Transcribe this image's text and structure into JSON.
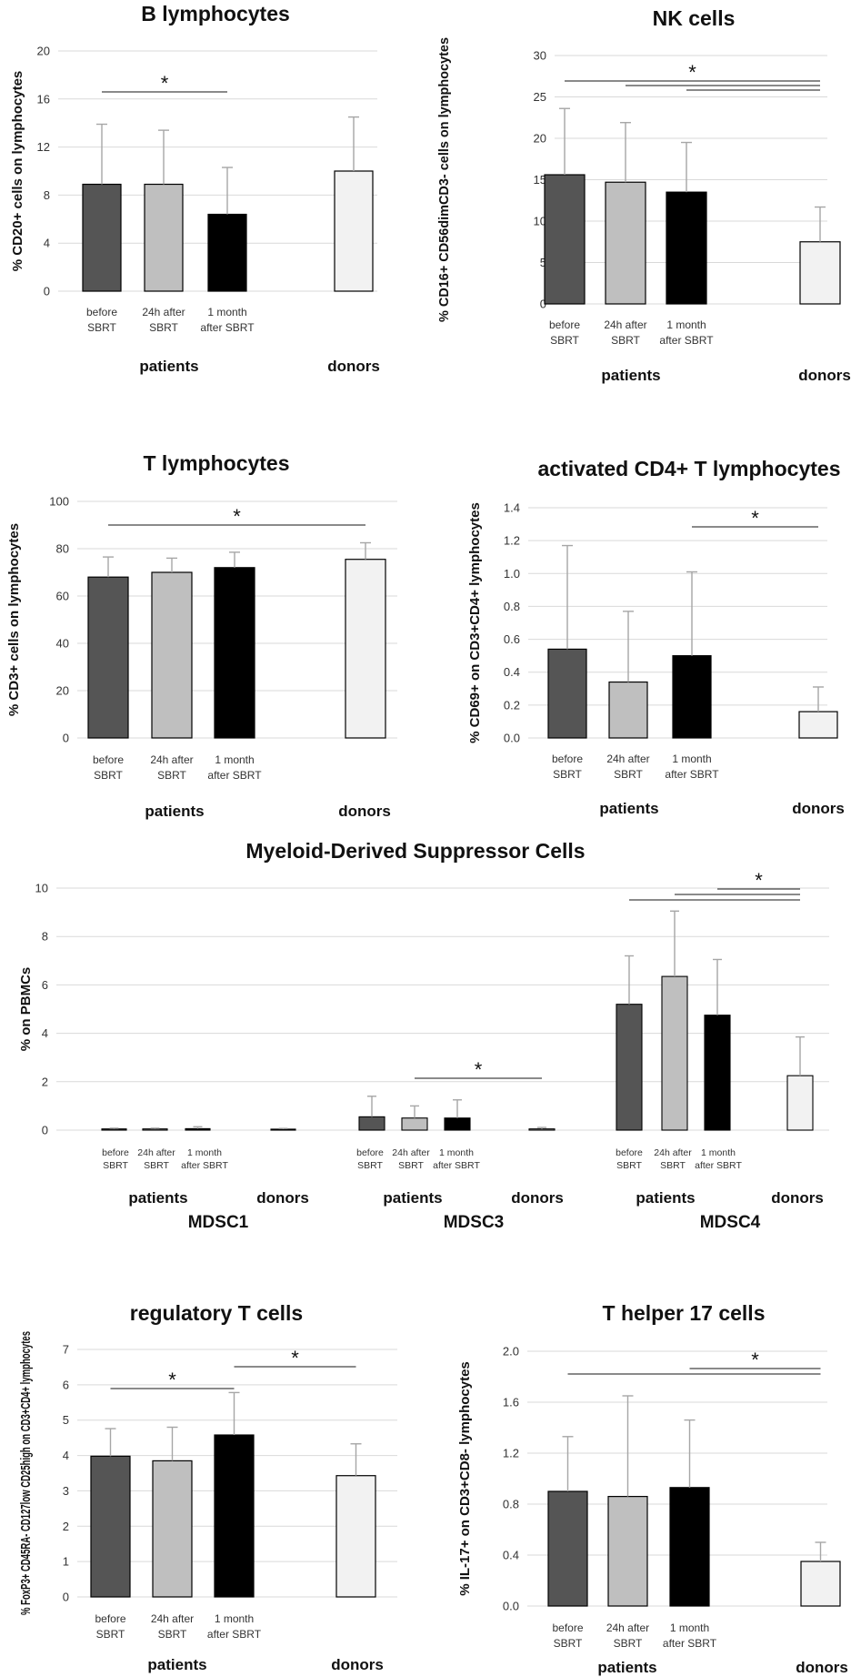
{
  "colors": {
    "before_SBRT": "#555555",
    "24h_after_SBRT": "#bfbfbf",
    "1_month_after_SBRT": "#000000",
    "donors": "#f2f2f2"
  },
  "chart_data": [
    {
      "id": "b",
      "type": "bar",
      "title": "B lymphocytes",
      "ylabel": "% CD20+ cells on lymphocytes",
      "ylim": [
        0,
        20
      ],
      "yticks": [
        "0",
        "4",
        "8",
        "12",
        "16",
        "20"
      ],
      "categories": [
        "before SBRT",
        "24h after SBRT",
        "1 month after SBRT",
        "donors"
      ],
      "category_labels": [
        [
          "before",
          "SBRT"
        ],
        [
          "24h after",
          "SBRT"
        ],
        [
          "1 month",
          "after SBRT"
        ],
        [
          ""
        ]
      ],
      "group_labels": [
        "patients",
        "donors"
      ],
      "values": [
        8.9,
        8.9,
        6.4,
        10.0
      ],
      "errors": [
        5.0,
        4.5,
        3.9,
        4.5
      ],
      "significance": [
        {
          "from": 0,
          "to": 2,
          "label": "*"
        }
      ]
    },
    {
      "id": "nk",
      "type": "bar",
      "title": "NK cells",
      "ylabel": "% CD16+ CD56dimCD3- cells on lymphocytes",
      "ylim": [
        0,
        30
      ],
      "yticks": [
        "0",
        "5",
        "10",
        "15",
        "20",
        "25",
        "30"
      ],
      "categories": [
        "before SBRT",
        "24h after SBRT",
        "1 month after SBRT",
        "donors"
      ],
      "category_labels": [
        [
          "before",
          "SBRT"
        ],
        [
          "24h after",
          "SBRT"
        ],
        [
          "1 month",
          "after SBRT"
        ],
        [
          ""
        ]
      ],
      "group_labels": [
        "patients",
        "donors"
      ],
      "values": [
        15.6,
        14.7,
        13.5,
        7.5
      ],
      "errors": [
        8.0,
        7.2,
        6.0,
        4.2
      ],
      "significance": [
        {
          "from": 0,
          "to": 3,
          "label": "*"
        },
        {
          "from": 1,
          "to": 3,
          "label": ""
        },
        {
          "from": 2,
          "to": 3,
          "label": ""
        }
      ]
    },
    {
      "id": "t",
      "type": "bar",
      "title": "T lymphocytes",
      "ylabel": "% CD3+ cells on lymphocytes",
      "ylim": [
        0,
        100
      ],
      "yticks": [
        "0",
        "20",
        "40",
        "60",
        "80",
        "100"
      ],
      "categories": [
        "before SBRT",
        "24h after SBRT",
        "1 month after SBRT",
        "donors"
      ],
      "category_labels": [
        [
          "before",
          "SBRT"
        ],
        [
          "24h after",
          "SBRT"
        ],
        [
          "1 month",
          "after SBRT"
        ],
        [
          ""
        ]
      ],
      "group_labels": [
        "patients",
        "donors"
      ],
      "values": [
        68,
        70,
        72,
        75.5
      ],
      "errors": [
        8.5,
        6,
        6.5,
        7
      ],
      "significance": [
        {
          "from": 0,
          "to": 3,
          "label": "*"
        }
      ]
    },
    {
      "id": "cd4",
      "type": "bar",
      "title": "activated CD4+ T lymphocytes",
      "ylabel": "% CD69+ on CD3+CD4+ lymphocytes",
      "ylim": [
        0,
        1.4
      ],
      "yticks": [
        "0.0",
        "0.2",
        "0.4",
        "0.6",
        "0.8",
        "1.0",
        "1.2",
        "1.4"
      ],
      "categories": [
        "before SBRT",
        "24h after SBRT",
        "1 month after SBRT",
        "donors"
      ],
      "category_labels": [
        [
          "before",
          "SBRT"
        ],
        [
          "24h after",
          "SBRT"
        ],
        [
          "1 month",
          "after SBRT"
        ],
        [
          ""
        ]
      ],
      "group_labels": [
        "patients",
        "donors"
      ],
      "values": [
        0.54,
        0.34,
        0.5,
        0.16
      ],
      "errors": [
        0.63,
        0.43,
        0.51,
        0.15
      ],
      "significance": [
        {
          "from": 2,
          "to": 3,
          "label": "*"
        }
      ]
    },
    {
      "id": "mdsc",
      "type": "bar",
      "title": "Myeloid-Derived Suppressor Cells",
      "ylabel": "% on PBMCs",
      "ylim": [
        0,
        10
      ],
      "yticks": [
        "0",
        "2",
        "4",
        "6",
        "8",
        "10"
      ],
      "category_labels": [
        [
          "before",
          "SBRT"
        ],
        [
          "24h after",
          "SBRT"
        ],
        [
          "1 month",
          "after SBRT"
        ],
        [
          ""
        ]
      ],
      "group_labels": [
        "patients",
        "donors"
      ],
      "subgroups": [
        {
          "name": "MDSC1",
          "values": [
            0.05,
            0.05,
            0.06,
            0.04
          ],
          "errors": [
            0.03,
            0.03,
            0.08,
            0.03
          ],
          "significance": []
        },
        {
          "name": "MDSC3",
          "values": [
            0.55,
            0.5,
            0.5,
            0.05
          ],
          "errors": [
            0.85,
            0.5,
            0.75,
            0.06
          ],
          "significance": [
            {
              "from": 1,
              "to": 3,
              "label": "*"
            }
          ]
        },
        {
          "name": "MDSC4",
          "values": [
            5.2,
            6.35,
            4.75,
            2.25
          ],
          "errors": [
            2.0,
            2.7,
            2.3,
            1.6
          ],
          "significance": [
            {
              "from": 0,
              "to": 3,
              "label": ""
            },
            {
              "from": 1,
              "to": 3,
              "label": ""
            },
            {
              "from": 2,
              "to": 3,
              "label": "*"
            }
          ]
        }
      ]
    },
    {
      "id": "treg",
      "type": "bar",
      "title": "regulatory T cells",
      "ylabel": "% FoxP3+ CD45RA- CD127low CD25high on CD3+CD4+ lymphocytes",
      "ylim": [
        0,
        7
      ],
      "yticks": [
        "0",
        "1",
        "2",
        "3",
        "4",
        "5",
        "6",
        "7"
      ],
      "categories": [
        "before SBRT",
        "24h after SBRT",
        "1 month after SBRT",
        "donors"
      ],
      "category_labels": [
        [
          "before",
          "SBRT"
        ],
        [
          "24h after",
          "SBRT"
        ],
        [
          "1 month",
          "after SBRT"
        ],
        [
          ""
        ]
      ],
      "group_labels": [
        "patients",
        "donors"
      ],
      "values": [
        3.98,
        3.85,
        4.58,
        3.43
      ],
      "errors": [
        0.78,
        0.95,
        1.2,
        0.9
      ],
      "significance": [
        {
          "from": 0,
          "to": 2,
          "label": "*"
        },
        {
          "from": 2,
          "to": 3,
          "label": "*"
        }
      ]
    },
    {
      "id": "th17",
      "type": "bar",
      "title": "T helper 17 cells",
      "ylabel": "% IL-17+ on CD3+CD8- lymphocytes",
      "ylim": [
        0,
        2.0
      ],
      "yticks": [
        "0.0",
        "0.4",
        "0.8",
        "1.2",
        "1.6",
        "2.0"
      ],
      "categories": [
        "before SBRT",
        "24h after SBRT",
        "1 month after SBRT",
        "donors"
      ],
      "category_labels": [
        [
          "before",
          "SBRT"
        ],
        [
          "24h after",
          "SBRT"
        ],
        [
          "1 month",
          "after SBRT"
        ],
        [
          ""
        ]
      ],
      "group_labels": [
        "patients",
        "donors"
      ],
      "values": [
        0.9,
        0.86,
        0.93,
        0.35
      ],
      "errors": [
        0.43,
        0.79,
        0.53,
        0.15
      ],
      "significance": [
        {
          "from": 0,
          "to": 3,
          "label": ""
        },
        {
          "from": 2,
          "to": 3,
          "label": "*"
        }
      ]
    }
  ]
}
